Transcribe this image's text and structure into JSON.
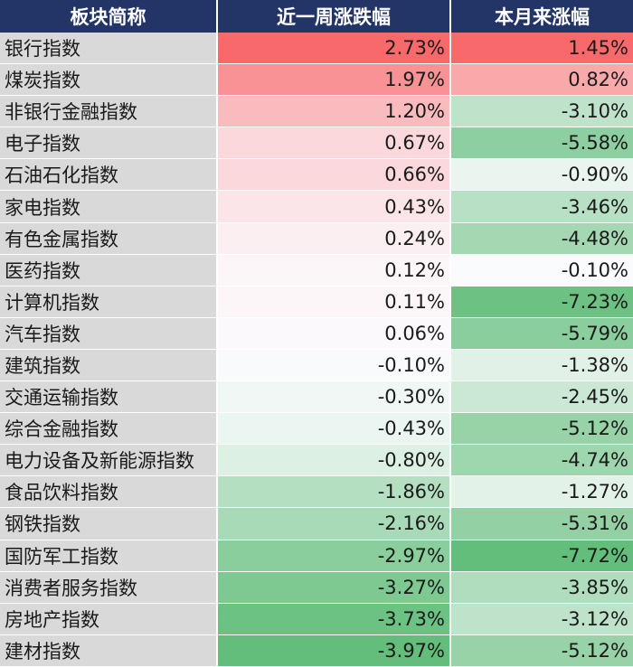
{
  "chart_data": {
    "type": "table",
    "columns": [
      "板块简称",
      "近一周涨跌幅",
      "本月来涨幅"
    ],
    "rows": [
      {
        "name": "银行指数",
        "week": "2.73%",
        "month": "1.45%"
      },
      {
        "name": "煤炭指数",
        "week": "1.97%",
        "month": "0.82%"
      },
      {
        "name": "非银行金融指数",
        "week": "1.20%",
        "month": "-3.10%"
      },
      {
        "name": "电子指数",
        "week": "0.67%",
        "month": "-5.58%"
      },
      {
        "name": "石油石化指数",
        "week": "0.66%",
        "month": "-0.90%"
      },
      {
        "name": "家电指数",
        "week": "0.43%",
        "month": "-3.46%"
      },
      {
        "name": "有色金属指数",
        "week": "0.24%",
        "month": "-4.48%"
      },
      {
        "name": "医药指数",
        "week": "0.12%",
        "month": "-0.10%"
      },
      {
        "name": "计算机指数",
        "week": "0.11%",
        "month": "-7.23%"
      },
      {
        "name": "汽车指数",
        "week": "0.06%",
        "month": "-5.79%"
      },
      {
        "name": "建筑指数",
        "week": "-0.10%",
        "month": "-1.38%"
      },
      {
        "name": "交通运输指数",
        "week": "-0.30%",
        "month": "-2.45%"
      },
      {
        "name": "综合金融指数",
        "week": "-0.43%",
        "month": "-5.12%"
      },
      {
        "name": "电力设备及新能源指数",
        "week": "-0.80%",
        "month": "-4.74%"
      },
      {
        "name": "食品饮料指数",
        "week": "-1.86%",
        "month": "-1.27%"
      },
      {
        "name": "钢铁指数",
        "week": "-2.16%",
        "month": "-5.31%"
      },
      {
        "name": "国防军工指数",
        "week": "-2.97%",
        "month": "-7.72%"
      },
      {
        "name": "消费者服务指数",
        "week": "-3.27%",
        "month": "-3.85%"
      },
      {
        "name": "房地产指数",
        "week": "-3.73%",
        "month": "-3.12%"
      },
      {
        "name": "建材指数",
        "week": "-3.97%",
        "month": "-5.12%"
      }
    ],
    "colors": {
      "header_bg": "#223566",
      "name_bg": "#d9d9d9",
      "positive_max": "#f8696b",
      "negative_max": "#63be7b",
      "neutral": "#fcfcff"
    }
  }
}
